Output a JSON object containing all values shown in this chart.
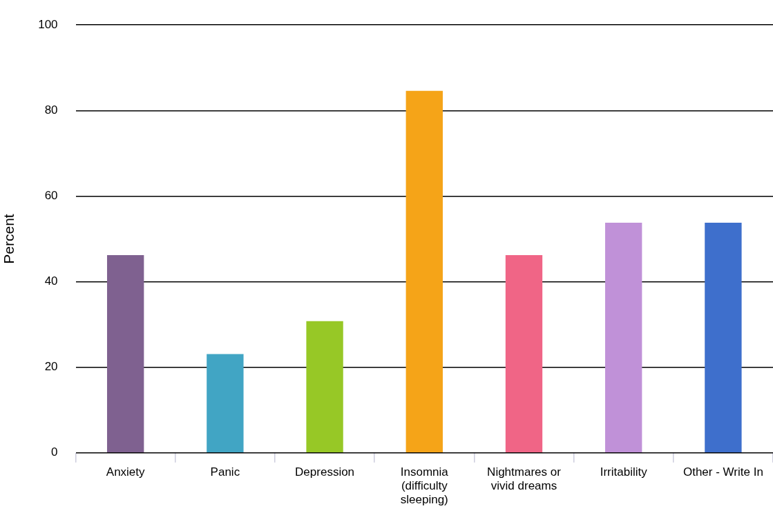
{
  "chart_data": {
    "type": "bar",
    "ylabel": "Percent",
    "categories": [
      "Anxiety",
      "Panic",
      "Depression",
      "Insomnia (difficulty sleeping)",
      "Nightmares or vivid dreams",
      "Irritability",
      "Other - Write In"
    ],
    "values": [
      46.2,
      23.1,
      30.8,
      84.6,
      46.2,
      53.8,
      53.8
    ],
    "colors": [
      "#7f6190",
      "#41a5c4",
      "#97c826",
      "#f5a418",
      "#f06586",
      "#c091d8",
      "#3e6fcc"
    ],
    "ylim": [
      0,
      100
    ],
    "yticks": [
      0,
      20,
      40,
      60,
      80,
      100
    ],
    "grid": "y",
    "legend": false
  }
}
